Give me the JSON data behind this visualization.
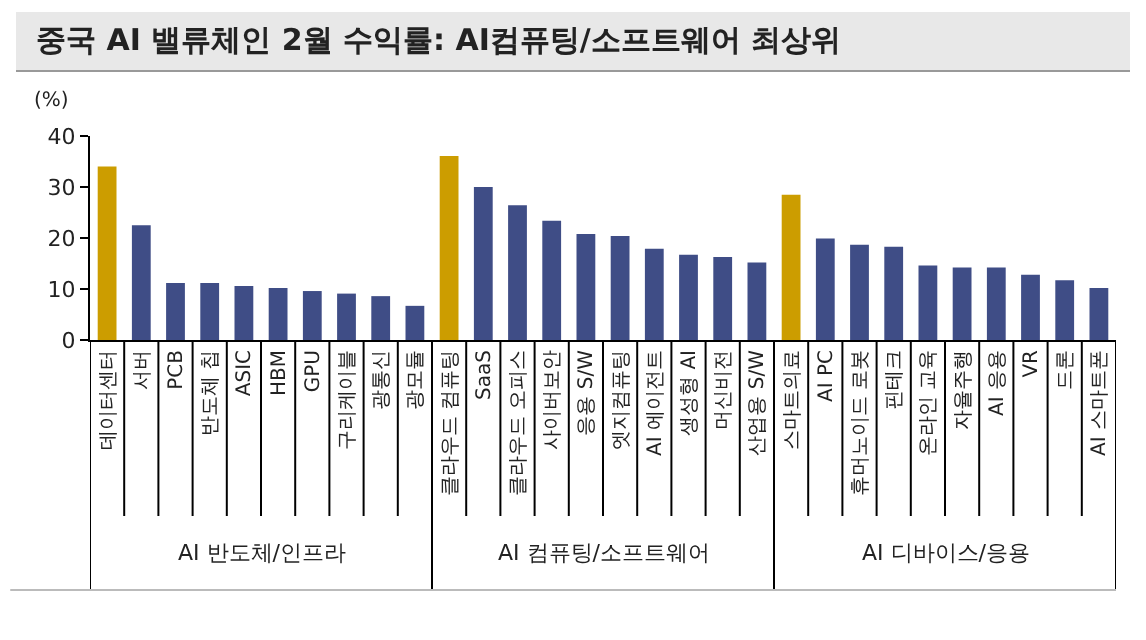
{
  "chart_data": {
    "type": "bar",
    "title": "중국 AI 밸류체인 2월 수익률: AI컴퓨팅/소프트웨어 최상위",
    "ylabel": "(%)",
    "categories": [
      "데이터센터",
      "서버",
      "PCB",
      "반도체 칩",
      "ASIC",
      "HBM",
      "GPU",
      "구리케이블",
      "광통신",
      "광모듈",
      "클라우드 컴퓨팅",
      "SaaS",
      "클라우드 오피스",
      "사이버보안",
      "응용 S/W",
      "엣지컴퓨팅",
      "AI 에이전트",
      "생성형 AI",
      "머신비전",
      "산업용 S/W",
      "스마트의료",
      "AI PC",
      "휴머노이드 로봇",
      "핀테크",
      "온라인 교육",
      "자율주행",
      "AI 응용",
      "VR",
      "드론",
      "AI 스마트폰"
    ],
    "values": [
      34.0,
      22.5,
      11.2,
      11.2,
      10.6,
      10.2,
      9.6,
      9.1,
      8.6,
      6.7,
      36.1,
      30.0,
      26.4,
      23.4,
      20.8,
      20.4,
      17.9,
      16.7,
      16.3,
      15.2,
      28.5,
      19.9,
      18.7,
      18.3,
      14.6,
      14.2,
      14.2,
      12.8,
      11.7,
      10.2
    ],
    "colors": [
      "#cc9d00",
      "#3f4d86",
      "#3f4d86",
      "#3f4d86",
      "#3f4d86",
      "#3f4d86",
      "#3f4d86",
      "#3f4d86",
      "#3f4d86",
      "#3f4d86",
      "#cc9d00",
      "#3f4d86",
      "#3f4d86",
      "#3f4d86",
      "#3f4d86",
      "#3f4d86",
      "#3f4d86",
      "#3f4d86",
      "#3f4d86",
      "#3f4d86",
      "#cc9d00",
      "#3f4d86",
      "#3f4d86",
      "#3f4d86",
      "#3f4d86",
      "#3f4d86",
      "#3f4d86",
      "#3f4d86",
      "#3f4d86",
      "#3f4d86"
    ],
    "annotations": [
      "AI 반도체/인프라",
      "AI 컴퓨팅/소프트웨어",
      "AI 디바이스/응용"
    ],
    "ylim": [
      0,
      40
    ],
    "yticks": [
      0,
      10,
      20,
      30,
      40
    ],
    "grid": false
  }
}
